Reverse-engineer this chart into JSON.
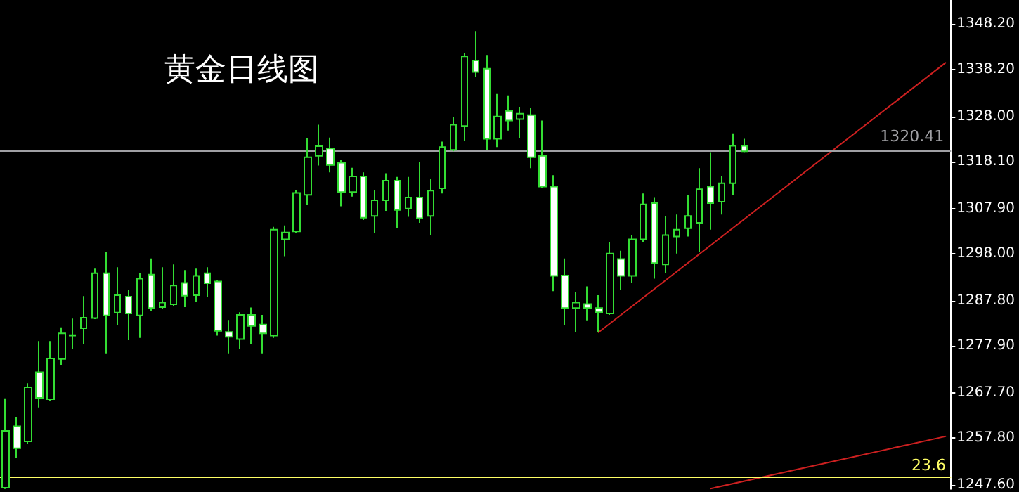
{
  "chart_data": {
    "type": "candlestick",
    "title": "黄金日线图",
    "categories": [
      null,
      null,
      null,
      null,
      null,
      null,
      null,
      null,
      null,
      null,
      null,
      null,
      null,
      null,
      null,
      null,
      null,
      null,
      null,
      null,
      null,
      null,
      null,
      null,
      null,
      null,
      null,
      null,
      null,
      null,
      null,
      null,
      null,
      null,
      null,
      null,
      null,
      null,
      null,
      null,
      null,
      null,
      null,
      null,
      null,
      null,
      null,
      null,
      null,
      null,
      null,
      null,
      null,
      null,
      null,
      null,
      null,
      null,
      null,
      null,
      null,
      null,
      null,
      null,
      null,
      null,
      null,
      null,
      null,
      null,
      null,
      null,
      null,
      null,
      null,
      null,
      null,
      null,
      null,
      null,
      null,
      null,
      null,
      null,
      null
    ],
    "ylim": [
      1246.7,
      1353.4
    ],
    "yticks": [
      {
        "value": 1247.6,
        "label": "1247.60"
      },
      {
        "value": 1257.8,
        "label": "1257.80"
      },
      {
        "value": 1267.7,
        "label": "1267.70"
      },
      {
        "value": 1277.9,
        "label": "1277.90"
      },
      {
        "value": 1287.8,
        "label": "1287.80"
      },
      {
        "value": 1298.0,
        "label": "1298.00"
      },
      {
        "value": 1307.9,
        "label": "1307.90"
      },
      {
        "value": 1318.1,
        "label": "1318.10"
      },
      {
        "value": 1328.0,
        "label": "1328.00"
      },
      {
        "value": 1338.2,
        "label": "1338.20"
      },
      {
        "value": 1348.2,
        "label": "1348.20"
      }
    ],
    "tick_labels": "y",
    "ref_lines": [
      {
        "axis": "y",
        "value": 1320.41,
        "label": "1320.41",
        "color": "#a0a0a4"
      },
      {
        "axis": "y",
        "value": 1249.3,
        "color": "#ffff66"
      }
    ],
    "annotations": [
      {
        "text": "23.6",
        "y": 1249.3
      }
    ],
    "series": [
      {
        "color": "#33dd33",
        "ohlc": [
          [
            1247.0,
            1266.5,
            1246.7,
            1259.4
          ],
          [
            1260.4,
            1262.4,
            1253.5,
            1255.6
          ],
          [
            1257.1,
            1269.8,
            1256.5,
            1268.9
          ],
          [
            1272.2,
            1279.0,
            1264.5,
            1266.6
          ],
          [
            1266.3,
            1279.0,
            1266.0,
            1275.2
          ],
          [
            1275.1,
            1282.0,
            1273.8,
            1280.7
          ],
          [
            1280.2,
            1283.9,
            1277.2,
            1280.3
          ],
          [
            1281.8,
            1288.8,
            1278.4,
            1284.1
          ],
          [
            1284.0,
            1294.8,
            1283.8,
            1293.8
          ],
          [
            1293.8,
            1298.4,
            1276.3,
            1284.6
          ],
          [
            1285.2,
            1295.1,
            1282.4,
            1289.0
          ],
          [
            1288.7,
            1290.2,
            1279.2,
            1285.0
          ],
          [
            1284.6,
            1293.8,
            1279.7,
            1292.6
          ],
          [
            1293.5,
            1297.0,
            1285.6,
            1286.2
          ],
          [
            1286.4,
            1295.1,
            1286.1,
            1287.4
          ],
          [
            1287.0,
            1295.7,
            1286.7,
            1291.1
          ],
          [
            1291.7,
            1294.5,
            1286.4,
            1288.9
          ],
          [
            1289.0,
            1294.8,
            1287.6,
            1293.2
          ],
          [
            1293.8,
            1295.1,
            1288.7,
            1291.6
          ],
          [
            1292.0,
            1292.3,
            1280.2,
            1281.2
          ],
          [
            1281.0,
            1283.6,
            1276.3,
            1279.9
          ],
          [
            1279.4,
            1285.3,
            1277.2,
            1284.7
          ],
          [
            1284.7,
            1286.3,
            1278.4,
            1282.3
          ],
          [
            1282.6,
            1284.7,
            1276.3,
            1280.7
          ],
          [
            1280.2,
            1303.9,
            1279.7,
            1303.3
          ],
          [
            1301.2,
            1304.2,
            1297.5,
            1302.7
          ],
          [
            1302.9,
            1311.9,
            1302.6,
            1311.3
          ],
          [
            1310.9,
            1323.2,
            1308.7,
            1319.1
          ],
          [
            1319.4,
            1326.2,
            1317.3,
            1321.5
          ],
          [
            1321.0,
            1323.4,
            1315.8,
            1317.4
          ],
          [
            1317.9,
            1318.5,
            1308.4,
            1311.5
          ],
          [
            1311.5,
            1316.8,
            1310.5,
            1314.9
          ],
          [
            1314.9,
            1315.8,
            1305.4,
            1305.9
          ],
          [
            1306.3,
            1311.9,
            1302.6,
            1309.7
          ],
          [
            1309.7,
            1315.6,
            1307.4,
            1314.0
          ],
          [
            1314.0,
            1314.8,
            1303.6,
            1307.6
          ],
          [
            1307.9,
            1314.8,
            1306.1,
            1310.3
          ],
          [
            1310.3,
            1318.0,
            1304.8,
            1305.8
          ],
          [
            1306.3,
            1314.4,
            1302.1,
            1311.8
          ],
          [
            1312.3,
            1322.5,
            1311.2,
            1321.3
          ],
          [
            1320.7,
            1327.8,
            1320.4,
            1326.2
          ],
          [
            1325.9,
            1341.8,
            1322.7,
            1341.1
          ],
          [
            1340.2,
            1346.6,
            1336.7,
            1337.7
          ],
          [
            1338.4,
            1341.4,
            1320.7,
            1323.1
          ],
          [
            1323.1,
            1332.9,
            1321.3,
            1328.0
          ],
          [
            1329.2,
            1332.6,
            1324.9,
            1327.1
          ],
          [
            1327.4,
            1330.1,
            1323.3,
            1328.6
          ],
          [
            1328.3,
            1329.8,
            1316.7,
            1319.1
          ],
          [
            1319.4,
            1327.1,
            1312.4,
            1312.7
          ],
          [
            1312.7,
            1315.2,
            1289.9,
            1293.2
          ],
          [
            1293.3,
            1297.0,
            1282.4,
            1286.2
          ],
          [
            1286.2,
            1289.7,
            1281.0,
            1287.4
          ],
          [
            1287.1,
            1290.9,
            1283.5,
            1286.2
          ],
          [
            1286.2,
            1289.0,
            1280.9,
            1285.3
          ],
          [
            1285.0,
            1300.5,
            1284.7,
            1298.1
          ],
          [
            1296.9,
            1298.7,
            1290.1,
            1293.2
          ],
          [
            1293.2,
            1302.1,
            1291.6,
            1301.2
          ],
          [
            1301.2,
            1311.2,
            1300.5,
            1308.8
          ],
          [
            1309.1,
            1310.4,
            1292.6,
            1296.0
          ],
          [
            1295.7,
            1306.3,
            1293.8,
            1302.1
          ],
          [
            1301.8,
            1306.6,
            1298.1,
            1303.3
          ],
          [
            1303.6,
            1310.9,
            1301.8,
            1306.3
          ],
          [
            1304.8,
            1316.7,
            1298.4,
            1312.1
          ],
          [
            1312.7,
            1320.2,
            1303.3,
            1309.1
          ],
          [
            1309.4,
            1314.9,
            1306.6,
            1313.4
          ],
          [
            1313.4,
            1324.3,
            1310.9,
            1321.6
          ],
          [
            1321.6,
            1323.1,
            1320.2,
            1320.41
          ],
          null,
          null,
          null,
          null,
          null,
          null,
          null,
          null,
          null,
          null,
          null,
          null,
          null,
          null,
          null,
          null,
          null,
          null
        ]
      },
      {
        "type": "line",
        "color": "#cc2020",
        "values": [
          null,
          null,
          null,
          null,
          null,
          null,
          null,
          null,
          null,
          null,
          null,
          null,
          null,
          null,
          null,
          null,
          null,
          null,
          null,
          null,
          null,
          null,
          null,
          null,
          null,
          null,
          null,
          null,
          null,
          null,
          null,
          null,
          null,
          null,
          null,
          null,
          null,
          null,
          null,
          null,
          null,
          null,
          null,
          null,
          null,
          null,
          null,
          null,
          null,
          null,
          null,
          null,
          null,
          1280.9,
          null,
          null,
          null,
          null,
          null,
          null,
          null,
          null,
          null,
          null,
          null,
          null,
          null,
          null,
          null,
          null,
          null,
          null,
          null,
          null,
          null,
          null,
          null,
          null,
          null,
          null,
          null,
          null,
          null,
          null,
          1339.7
        ]
      },
      {
        "type": "line",
        "color": "#cc2020",
        "values": [
          null,
          null,
          null,
          null,
          null,
          null,
          null,
          null,
          null,
          null,
          null,
          null,
          null,
          null,
          null,
          null,
          null,
          null,
          null,
          null,
          null,
          null,
          null,
          null,
          null,
          null,
          null,
          null,
          null,
          null,
          null,
          null,
          null,
          null,
          null,
          null,
          null,
          null,
          null,
          null,
          null,
          null,
          null,
          null,
          null,
          null,
          null,
          null,
          null,
          null,
          null,
          null,
          null,
          null,
          null,
          null,
          null,
          null,
          null,
          null,
          null,
          null,
          null,
          1246.8,
          null,
          null,
          null,
          null,
          null,
          null,
          null,
          null,
          null,
          null,
          null,
          null,
          null,
          null,
          null,
          null,
          null,
          null,
          null,
          null,
          1258.2
        ]
      }
    ]
  }
}
